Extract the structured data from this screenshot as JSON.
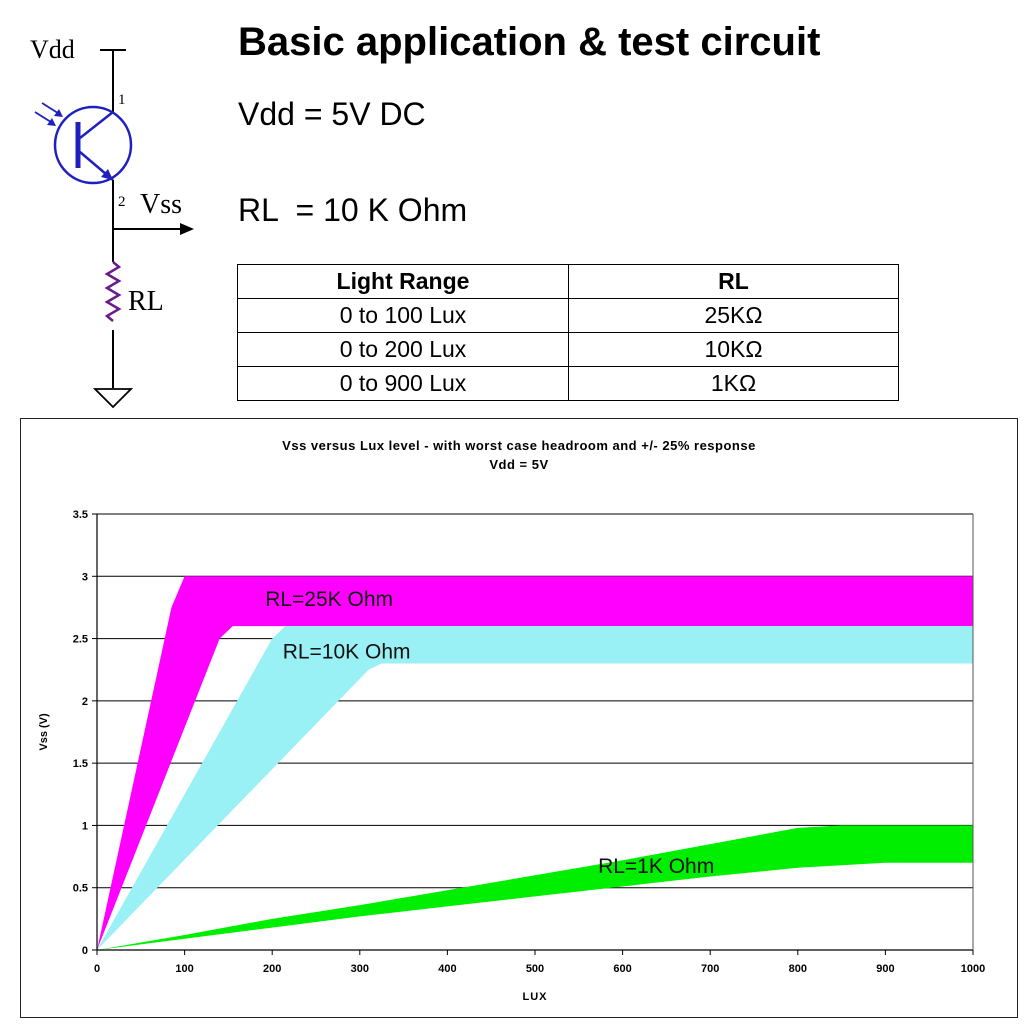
{
  "header": {
    "title": "Basic application & test circuit",
    "vdd_line": "Vdd = 5V DC",
    "rl_line": "RL  = 10 K Ohm"
  },
  "circuit": {
    "vdd_label": "Vdd",
    "vss_label": "Vss",
    "rl_label": "RL",
    "pin1_label": "1",
    "pin2_label": "2",
    "colors": {
      "transistor": "#2020c0",
      "wire": "#000000",
      "resistor": "#6a1a8a"
    }
  },
  "rl_table": {
    "headers": [
      "Light Range",
      "RL"
    ],
    "rows": [
      [
        "0 to 100 Lux",
        "25KΩ"
      ],
      [
        "0 to 200 Lux",
        "10KΩ"
      ],
      [
        "0 to 900 Lux",
        "1KΩ"
      ]
    ]
  },
  "chart_data": {
    "type": "area",
    "title": "Vss versus Lux level - with worst case headroom and  +/- 25% response",
    "subtitle": "Vdd = 5V",
    "xlabel": "LUX",
    "ylabel": "Vss (V)",
    "xlim": [
      0,
      1000
    ],
    "ylim": [
      0,
      3.5
    ],
    "x_ticks": [
      0,
      100,
      200,
      300,
      400,
      500,
      600,
      700,
      800,
      900,
      1000
    ],
    "y_ticks": [
      0,
      0.5,
      1,
      1.5,
      2,
      2.5,
      3,
      3.5
    ],
    "y_tick_labels": [
      "0",
      "0.5",
      "1",
      "1.5",
      "2",
      "2.5",
      "3",
      "3.5"
    ],
    "grid": true,
    "series": [
      {
        "name": "RL=25K Ohm",
        "color": "#ff00ff",
        "upper": [
          [
            0,
            0
          ],
          [
            85,
            2.75
          ],
          [
            100,
            3.0
          ],
          [
            1000,
            3.0
          ]
        ],
        "lower": [
          [
            0,
            0
          ],
          [
            140,
            2.5
          ],
          [
            155,
            2.6
          ],
          [
            1000,
            2.6
          ]
        ],
        "label_at": [
          192,
          2.76
        ]
      },
      {
        "name": "RL=10K Ohm",
        "color": "#99f0f5",
        "upper": [
          [
            0,
            0
          ],
          [
            200,
            2.5
          ],
          [
            215,
            2.6
          ],
          [
            1000,
            2.6
          ]
        ],
        "lower": [
          [
            0,
            0
          ],
          [
            310,
            2.25
          ],
          [
            325,
            2.3
          ],
          [
            1000,
            2.3
          ]
        ],
        "label_at": [
          212,
          2.34
        ]
      },
      {
        "name": "RL=1K Ohm",
        "color": "#00ee00",
        "upper": [
          [
            0,
            0
          ],
          [
            100,
            0.12
          ],
          [
            200,
            0.25
          ],
          [
            300,
            0.36
          ],
          [
            400,
            0.48
          ],
          [
            500,
            0.6
          ],
          [
            600,
            0.72
          ],
          [
            700,
            0.85
          ],
          [
            800,
            0.98
          ],
          [
            850,
            1.0
          ],
          [
            1000,
            1.0
          ]
        ],
        "lower": [
          [
            0,
            0
          ],
          [
            100,
            0.09
          ],
          [
            200,
            0.18
          ],
          [
            300,
            0.27
          ],
          [
            400,
            0.35
          ],
          [
            500,
            0.43
          ],
          [
            600,
            0.51
          ],
          [
            700,
            0.59
          ],
          [
            800,
            0.66
          ],
          [
            900,
            0.7
          ],
          [
            1000,
            0.7
          ]
        ],
        "label_at": [
          572,
          0.62
        ]
      }
    ]
  }
}
